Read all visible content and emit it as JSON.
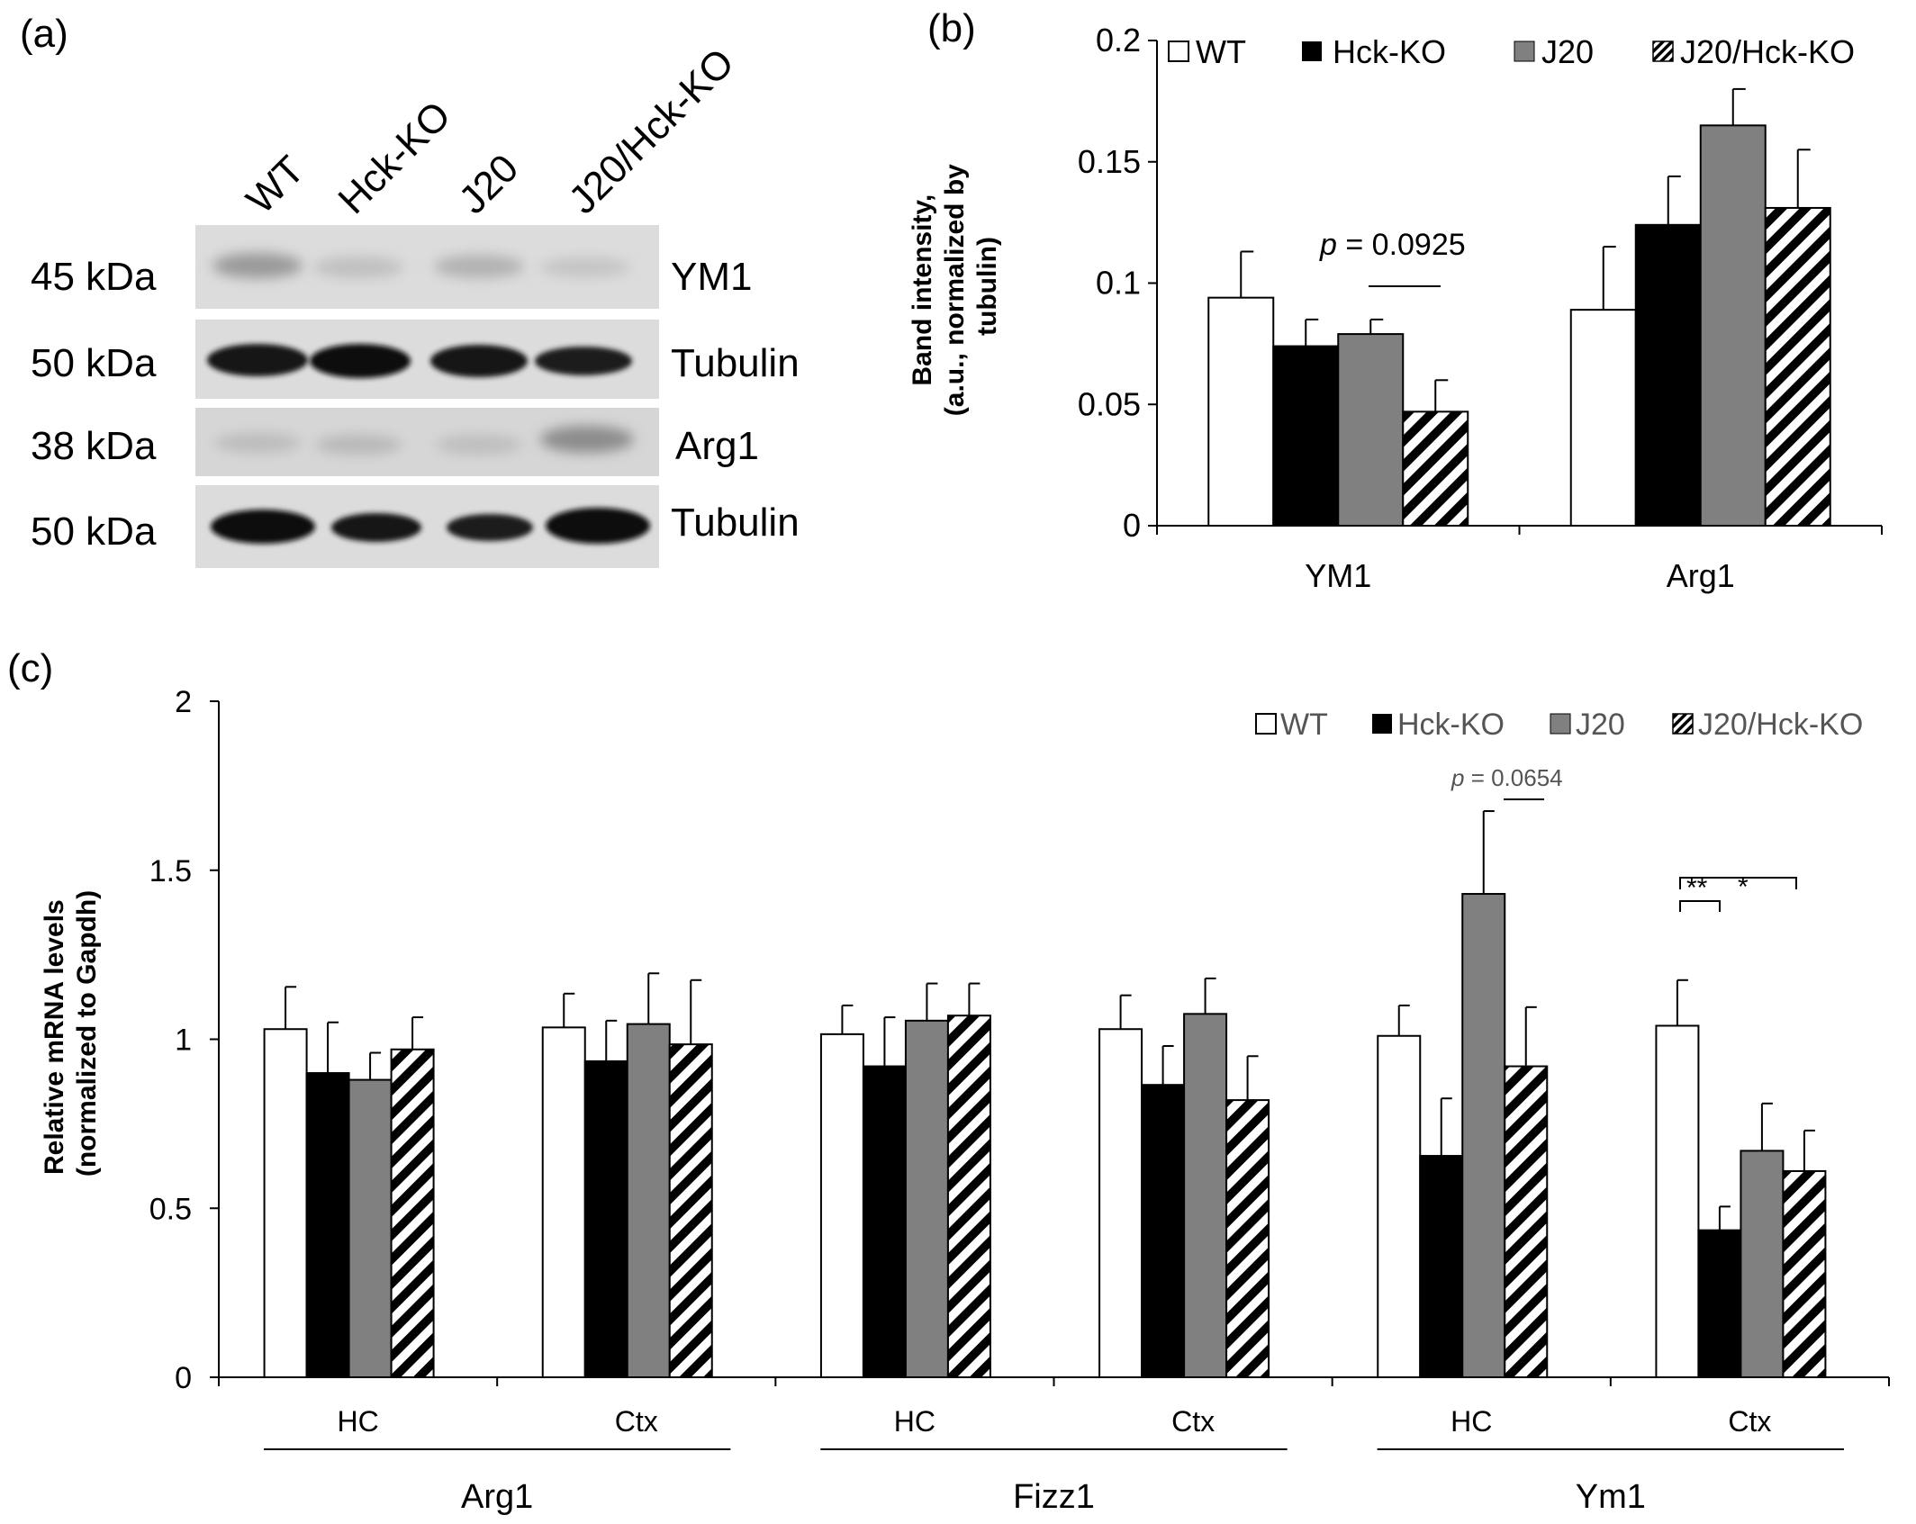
{
  "panels": {
    "a": {
      "label": "(a)",
      "lanes": [
        "WT",
        "Hck-KO",
        "J20",
        "J20/Hck-KO"
      ],
      "strips": [
        {
          "kda": "45 kDa",
          "protein": "YM1"
        },
        {
          "kda": "50 kDa",
          "protein": "Tubulin"
        },
        {
          "kda": "38 kDa",
          "protein": "Arg1"
        },
        {
          "kda": "50 kDa",
          "protein": "Tubulin"
        }
      ]
    },
    "b": {
      "label": "(b)"
    },
    "c": {
      "label": "(c)"
    }
  },
  "legend": {
    "items": [
      "WT",
      "Hck-KO",
      "J20",
      "J20/Hck-KO"
    ],
    "colors": [
      "#ffffff",
      "#000000",
      "#808080",
      "hatch"
    ]
  },
  "chart_data": [
    {
      "panel": "b",
      "type": "bar",
      "categories": [
        "YM1",
        "Arg1"
      ],
      "series": [
        {
          "name": "WT",
          "values": [
            0.094,
            0.089
          ],
          "errors": [
            0.019,
            0.026
          ]
        },
        {
          "name": "Hck-KO",
          "values": [
            0.074,
            0.124
          ],
          "errors": [
            0.011,
            0.02
          ]
        },
        {
          "name": "J20",
          "values": [
            0.079,
            0.165
          ],
          "errors": [
            0.006,
            0.015
          ]
        },
        {
          "name": "J20/Hck-KO",
          "values": [
            0.047,
            0.131
          ],
          "errors": [
            0.013,
            0.024
          ]
        }
      ],
      "ylabel": "Band intensity, (a.u., normalized by tubulin)",
      "ylim": [
        0,
        0.2
      ],
      "yticks": [
        "0",
        "0.05",
        "0.1",
        "0.15",
        "0.2"
      ],
      "legend_position": "top",
      "annotation": {
        "p_label": "p",
        "text": " = 0.0925"
      }
    },
    {
      "panel": "c",
      "type": "bar",
      "groups": [
        {
          "name": "Arg1",
          "subgroups": [
            "HC",
            "Ctx"
          ]
        },
        {
          "name": "Fizz1",
          "subgroups": [
            "HC",
            "Ctx"
          ]
        },
        {
          "name": "Ym1",
          "subgroups": [
            "HC",
            "Ctx"
          ]
        }
      ],
      "series": [
        {
          "name": "WT",
          "values": [
            1.03,
            1.035,
            1.015,
            1.03,
            1.01,
            1.04
          ],
          "errors": [
            0.125,
            0.1,
            0.085,
            0.1,
            0.09,
            0.135
          ]
        },
        {
          "name": "Hck-KO",
          "values": [
            0.9,
            0.935,
            0.92,
            0.865,
            0.655,
            0.435
          ],
          "errors": [
            0.15,
            0.12,
            0.145,
            0.115,
            0.17,
            0.07
          ]
        },
        {
          "name": "J20",
          "values": [
            0.88,
            1.045,
            1.055,
            1.075,
            1.43,
            0.67
          ],
          "errors": [
            0.08,
            0.15,
            0.11,
            0.105,
            0.245,
            0.14
          ]
        },
        {
          "name": "J20/Hck-KO",
          "values": [
            0.97,
            0.985,
            1.07,
            0.82,
            0.92,
            0.61
          ],
          "errors": [
            0.095,
            0.19,
            0.095,
            0.13,
            0.175,
            0.12
          ]
        }
      ],
      "ylabel": "Relative mRNA levels (normalized to Gapdh)",
      "ylim": [
        0,
        2
      ],
      "yticks": [
        "0",
        "0.5",
        "1",
        "1.5",
        "2"
      ],
      "legend_position": "top-right",
      "annotations": {
        "ym1_hc": {
          "p_label": "p",
          "text": " = 0.0654"
        },
        "ym1_ctx_hck": "**",
        "ym1_ctx_j20hck": "*"
      }
    }
  ]
}
